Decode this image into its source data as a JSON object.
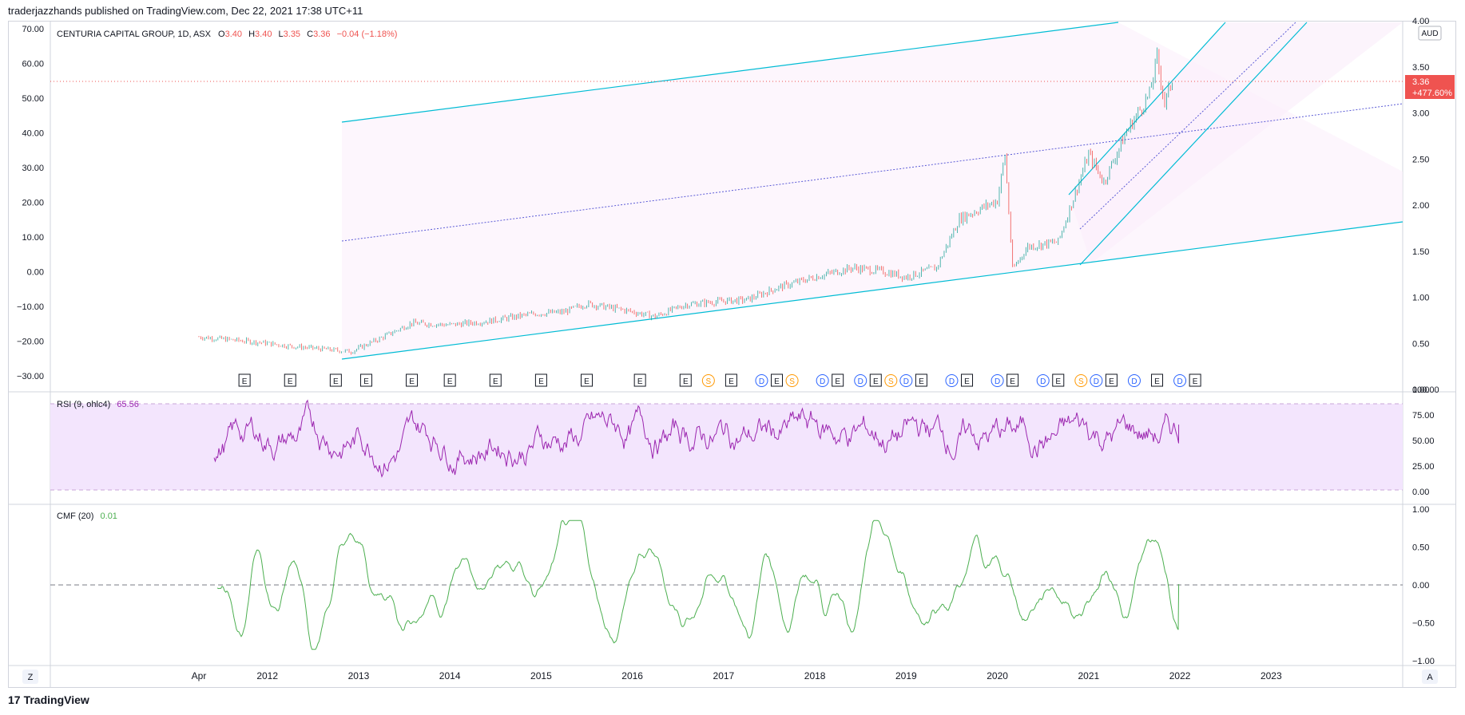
{
  "header": {
    "publisher": "traderjazzhands published on TradingView.com, Dec 22, 2021 17:38 UTC+11"
  },
  "legend": {
    "symbol": "CENTURIA CAPITAL GROUP, 1D, ASX",
    "o_label": "O",
    "o_value": "3.40",
    "h_label": "H",
    "h_value": "3.40",
    "l_label": "L",
    "l_value": "3.35",
    "c_label": "C",
    "c_value": "3.36",
    "change": "−0.04 (−1.18%)"
  },
  "price_badge": {
    "price": "3.36",
    "percent": "+477.60%"
  },
  "currency_label": "AUD",
  "rsi_legend": {
    "name": "RSI (9, ohlc4)",
    "value": "65.56"
  },
  "cmf_legend": {
    "name": "CMF (20)",
    "value": "0.01"
  },
  "bottom_buttons": {
    "left": "Z",
    "right": "A"
  },
  "footer": {
    "brand": "TradingView"
  },
  "colors": {
    "up": "#26a69a",
    "down": "#ef5350",
    "channel": "#00bcd4",
    "midline": "#3f3fd0",
    "rsi": "#9c27b0",
    "rsi_band": "#f3e5fd",
    "cmf": "#4caf50",
    "badge": "#ef5350"
  },
  "chart_data": [
    {
      "type": "candlestick",
      "x_tick_labels": [
        "Apr",
        "2012",
        "2013",
        "2014",
        "2015",
        "2016",
        "2017",
        "2018",
        "2019",
        "2020",
        "2021",
        "2022",
        "2023"
      ],
      "x": [
        "2011-04",
        "2012-01",
        "2013-01",
        "2014-01",
        "2015-01",
        "2016-01",
        "2017-01",
        "2018-01",
        "2019-01",
        "2020-01",
        "2021-01",
        "2022-01",
        "2023-01"
      ],
      "right_axis_ticks": [
        "4.00",
        "3.50",
        "3.00",
        "2.50",
        "2.00",
        "1.50",
        "1.00",
        "0.50",
        "0.00"
      ],
      "left_axis_ticks": [
        "70.00",
        "60.00",
        "50.00",
        "40.00",
        "30.00",
        "20.00",
        "10.00",
        "0.00",
        "−10.00",
        "−20.00",
        "−30.00"
      ],
      "left_axis_values": [
        70,
        60,
        50,
        40,
        30,
        20,
        10,
        0,
        -10,
        -20,
        -30
      ],
      "ylim": [
        0,
        4
      ],
      "approx_close_path": [
        [
          "2011-04",
          0.57
        ],
        [
          "2011-08",
          0.54
        ],
        [
          "2011-12",
          0.51
        ],
        [
          "2012-04",
          0.47
        ],
        [
          "2012-08",
          0.44
        ],
        [
          "2012-12",
          0.41
        ],
        [
          "2013-04",
          0.56
        ],
        [
          "2013-08",
          0.72
        ],
        [
          "2014-01",
          0.7
        ],
        [
          "2014-06",
          0.74
        ],
        [
          "2014-12",
          0.82
        ],
        [
          "2015-04",
          0.84
        ],
        [
          "2015-07",
          0.93
        ],
        [
          "2015-12",
          0.86
        ],
        [
          "2016-04",
          0.79
        ],
        [
          "2016-08",
          0.92
        ],
        [
          "2017-01",
          0.96
        ],
        [
          "2017-04",
          0.97
        ],
        [
          "2017-08",
          1.1
        ],
        [
          "2018-01",
          1.22
        ],
        [
          "2018-06",
          1.32
        ],
        [
          "2018-10",
          1.28
        ],
        [
          "2019-01",
          1.22
        ],
        [
          "2019-05",
          1.32
        ],
        [
          "2019-08",
          1.85
        ],
        [
          "2020-01",
          2.05
        ],
        [
          "2020-02",
          2.55
        ],
        [
          "2020-03",
          1.3
        ],
        [
          "2020-05",
          1.55
        ],
        [
          "2020-09",
          1.6
        ],
        [
          "2021-01",
          2.55
        ],
        [
          "2021-03",
          2.25
        ],
        [
          "2021-06",
          2.8
        ],
        [
          "2021-09",
          3.2
        ],
        [
          "2021-10",
          3.6
        ],
        [
          "2021-11",
          3.1
        ],
        [
          "2021-12",
          3.36
        ]
      ]
    },
    {
      "type": "line",
      "name": "RSI (9, ohlc4)",
      "y_axis_ticks": [
        "100.00",
        "75.00",
        "50.00",
        "25.00",
        "0.00"
      ],
      "bands": [
        10,
        90
      ],
      "ylim": [
        0,
        100
      ],
      "last": 65.56
    },
    {
      "type": "line",
      "name": "CMF (20)",
      "y_axis_ticks": [
        "1.00",
        "0.50",
        "0.00",
        "−0.50",
        "−1.00"
      ],
      "ylim": [
        -1,
        1
      ],
      "zero_line": 0,
      "last": 0.01
    }
  ],
  "events": [
    {
      "x": "2011-10",
      "label": "E"
    },
    {
      "x": "2012-04",
      "label": "E"
    },
    {
      "x": "2012-10",
      "label": "E"
    },
    {
      "x": "2013-02",
      "label": "E"
    },
    {
      "x": "2013-08",
      "label": "E"
    },
    {
      "x": "2014-01",
      "label": "E"
    },
    {
      "x": "2014-07",
      "label": "E"
    },
    {
      "x": "2015-01",
      "label": "E"
    },
    {
      "x": "2015-07",
      "label": "E"
    },
    {
      "x": "2016-02",
      "label": "E"
    },
    {
      "x": "2016-08",
      "label": "E"
    },
    {
      "x": "2016-11",
      "label": "S"
    },
    {
      "x": "2017-02",
      "label": "E"
    },
    {
      "x": "2017-06",
      "label": "D"
    },
    {
      "x": "2017-08",
      "label": "E"
    },
    {
      "x": "2017-10",
      "label": "S"
    },
    {
      "x": "2018-02",
      "label": "D"
    },
    {
      "x": "2018-04",
      "label": "E"
    },
    {
      "x": "2018-07",
      "label": "D"
    },
    {
      "x": "2018-09",
      "label": "E"
    },
    {
      "x": "2018-11",
      "label": "S"
    },
    {
      "x": "2019-01",
      "label": "D"
    },
    {
      "x": "2019-03",
      "label": "E"
    },
    {
      "x": "2019-07",
      "label": "D"
    },
    {
      "x": "2019-09",
      "label": "E"
    },
    {
      "x": "2020-01",
      "label": "D"
    },
    {
      "x": "2020-03",
      "label": "E"
    },
    {
      "x": "2020-07",
      "label": "D"
    },
    {
      "x": "2020-09",
      "label": "E"
    },
    {
      "x": "2020-12",
      "label": "S"
    },
    {
      "x": "2021-02",
      "label": "D"
    },
    {
      "x": "2021-04",
      "label": "E"
    },
    {
      "x": "2021-07",
      "label": "D"
    },
    {
      "x": "2021-10",
      "label": "E"
    },
    {
      "x": "2022-01",
      "label": "D"
    },
    {
      "x": "2022-03",
      "label": "E"
    }
  ]
}
